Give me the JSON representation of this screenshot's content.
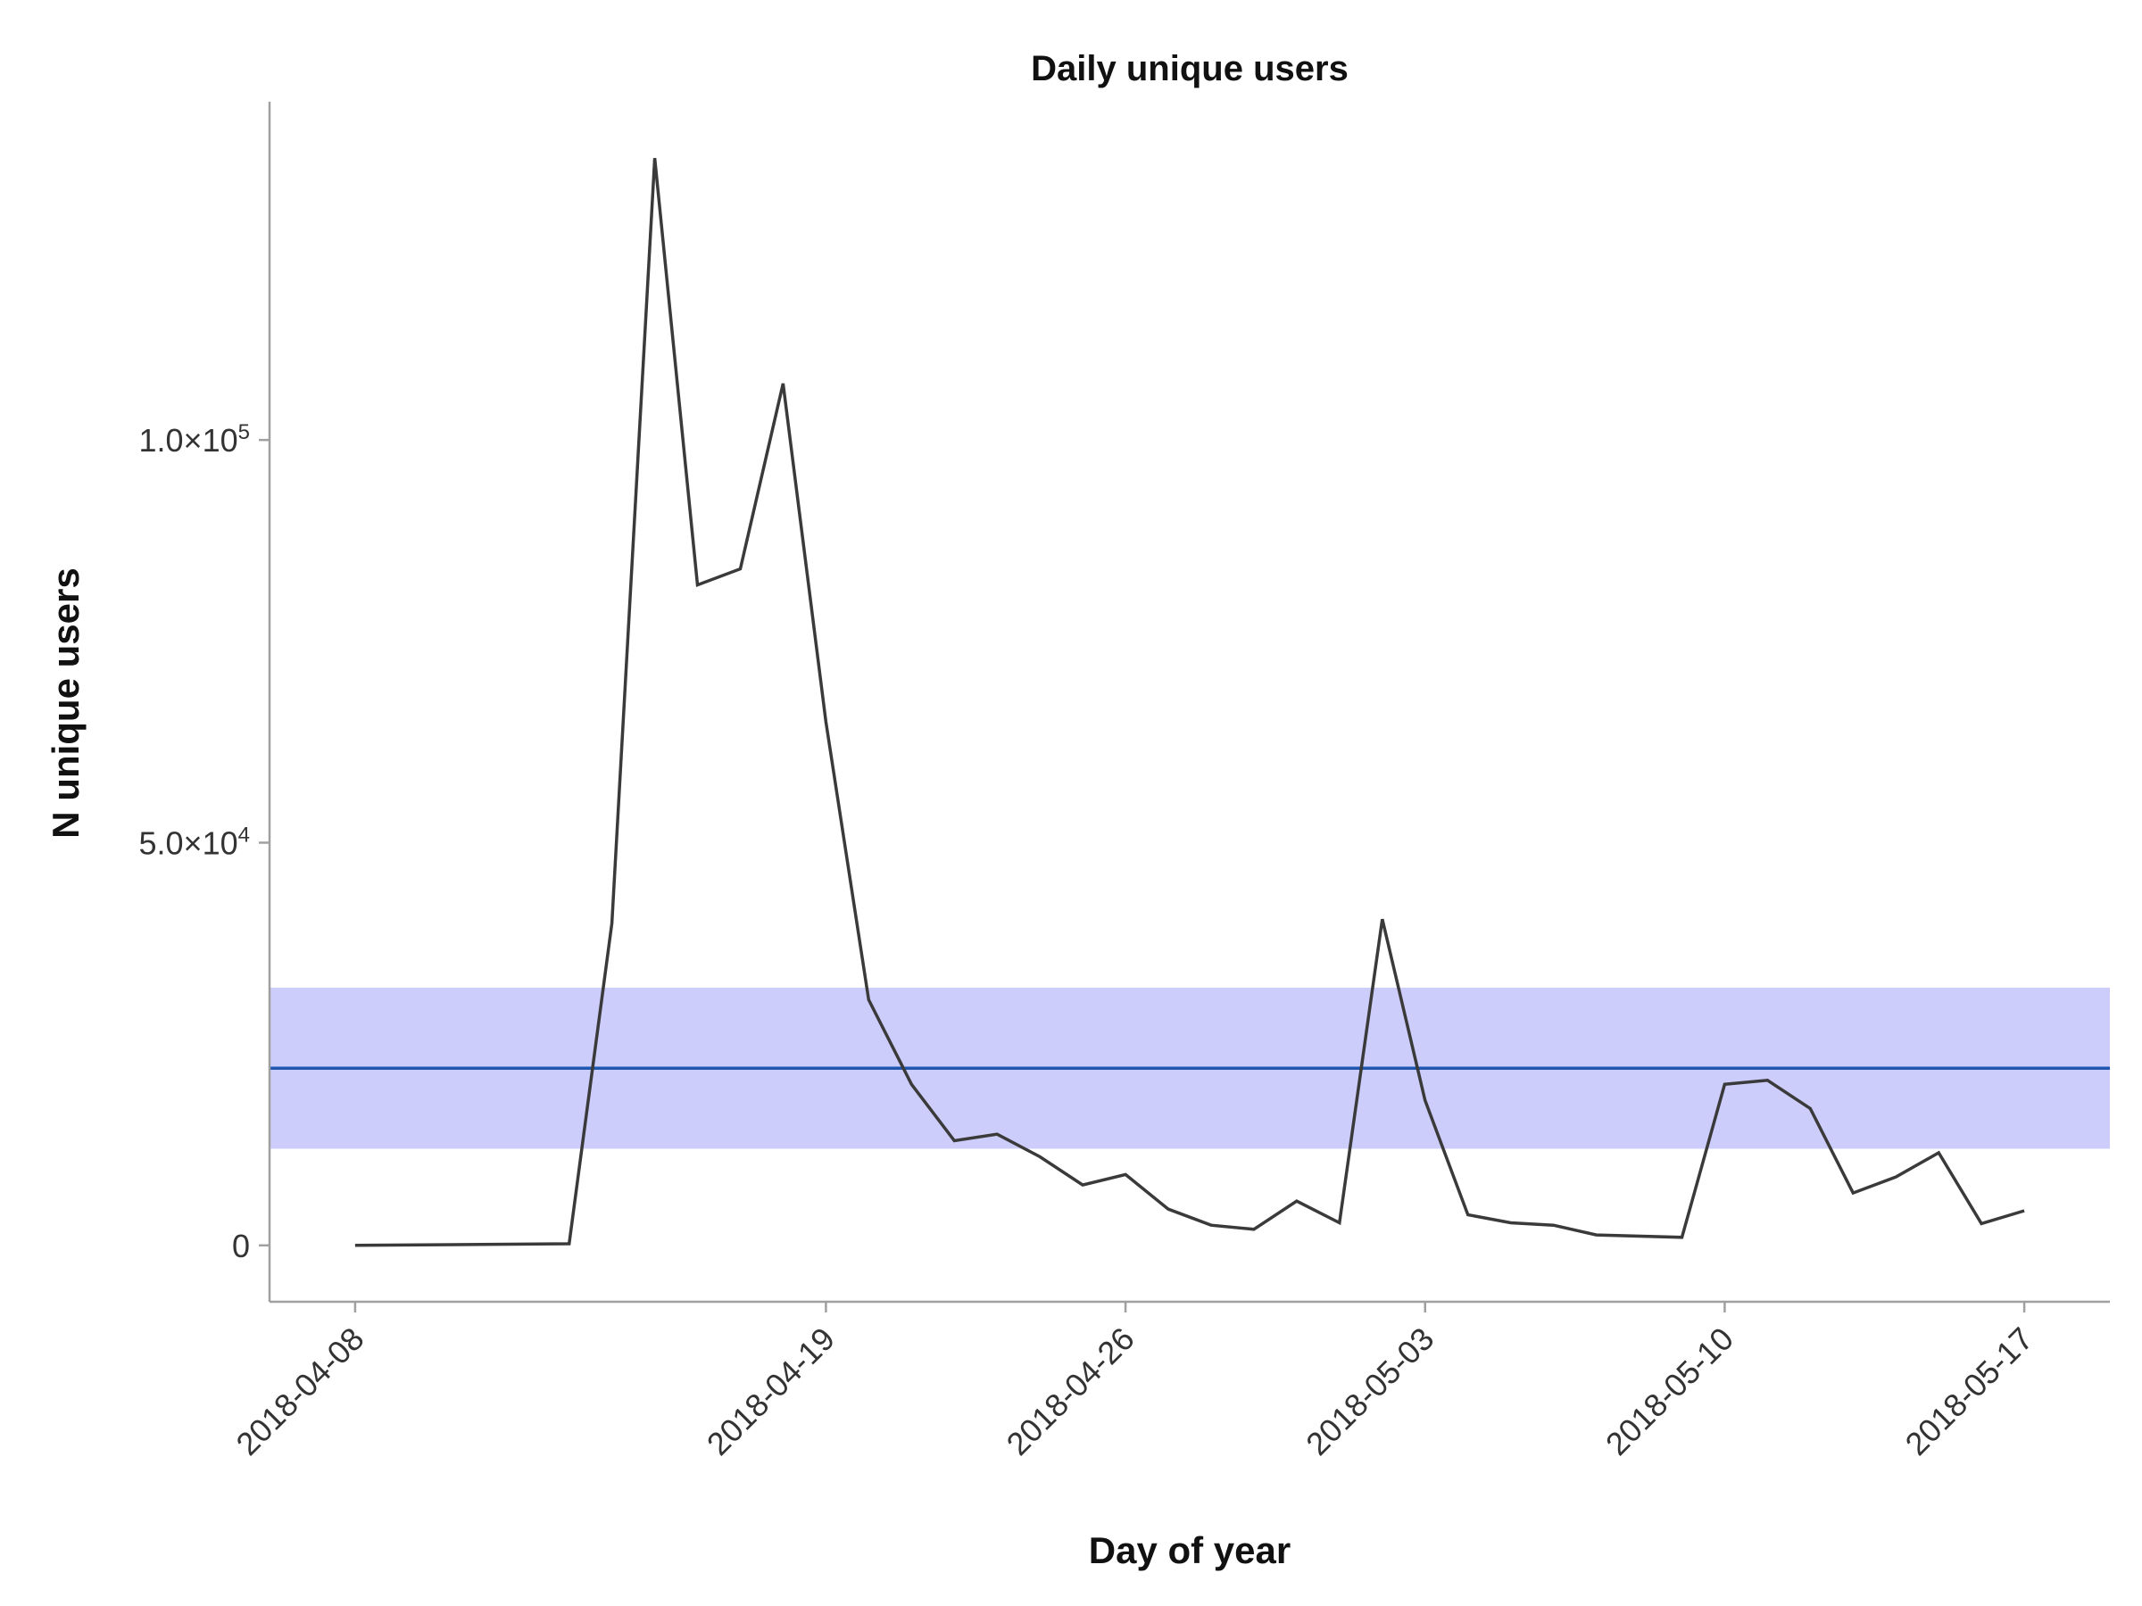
{
  "chart_data": {
    "type": "line",
    "title": "Daily unique users",
    "xlabel": "Day of year",
    "ylabel": "N unique users",
    "x_ticks": [
      "2018-04-08",
      "2018-04-19",
      "2018-04-26",
      "2018-05-03",
      "2018-05-10",
      "2018-05-17"
    ],
    "y_ticks": [
      {
        "value": 0,
        "label": "0",
        "sup": ""
      },
      {
        "value": 50000,
        "label": "5.0×10",
        "sup": "4"
      },
      {
        "value": 100000,
        "label": "1.0×10",
        "sup": "5"
      }
    ],
    "xlim": [
      "2018-04-06",
      "2018-05-19"
    ],
    "ylim": [
      -7000,
      142000
    ],
    "grid": false,
    "band": {
      "low": 12000,
      "high": 32000,
      "color": "#cdcdfb"
    },
    "reference_line": {
      "value": 22000,
      "color": "#1f56b0"
    },
    "series": [
      {
        "color": "#3a3a3a",
        "x": [
          "2018-04-08",
          "2018-04-13",
          "2018-04-14",
          "2018-04-15",
          "2018-04-16",
          "2018-04-17",
          "2018-04-18",
          "2018-04-19",
          "2018-04-20",
          "2018-04-21",
          "2018-04-22",
          "2018-04-23",
          "2018-04-24",
          "2018-04-25",
          "2018-04-26",
          "2018-04-27",
          "2018-04-28",
          "2018-04-29",
          "2018-04-30",
          "2018-05-01",
          "2018-05-02",
          "2018-05-03",
          "2018-05-04",
          "2018-05-05",
          "2018-05-06",
          "2018-05-07",
          "2018-05-09",
          "2018-05-10",
          "2018-05-11",
          "2018-05-12",
          "2018-05-13",
          "2018-05-14",
          "2018-05-15",
          "2018-05-16",
          "2018-05-17"
        ],
        "y": [
          0,
          200,
          40000,
          135000,
          82000,
          84000,
          107000,
          65000,
          30500,
          20000,
          13000,
          13800,
          11000,
          7500,
          8800,
          4500,
          2500,
          2000,
          5500,
          2800,
          40500,
          18000,
          3800,
          2800,
          2500,
          1300,
          1000,
          20000,
          20500,
          17000,
          6500,
          8500,
          11500,
          2700,
          4300
        ]
      }
    ]
  }
}
